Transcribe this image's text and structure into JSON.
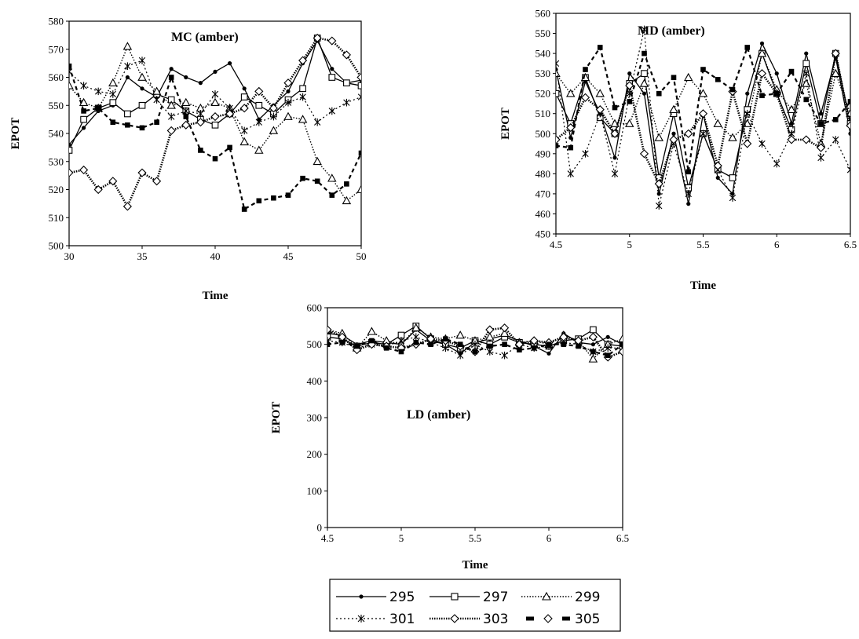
{
  "legend": {
    "items": [
      {
        "label": "295",
        "style": "solid",
        "marker": "dot"
      },
      {
        "label": "297",
        "style": "solid",
        "marker": "square-open"
      },
      {
        "label": "299",
        "style": "dotted",
        "marker": "triangle-open"
      },
      {
        "label": "301",
        "style": "dotted",
        "marker": "star"
      },
      {
        "label": "303",
        "style": "thick-dotted",
        "marker": "diamond-open"
      },
      {
        "label": "305",
        "style": "dashed",
        "marker": "diamond-open"
      }
    ]
  },
  "chart_data": [
    {
      "type": "line",
      "title": "MC (amber)",
      "xlabel": "Time",
      "ylabel": "EPOT",
      "xlim": [
        30,
        50
      ],
      "ylim": [
        500,
        580
      ],
      "xticks": [
        30,
        35,
        40,
        45,
        50
      ],
      "yticks": [
        500,
        510,
        520,
        530,
        540,
        550,
        560,
        570,
        580
      ],
      "series": [
        {
          "name": "295",
          "x": [
            30,
            31,
            32,
            33,
            34,
            35,
            36,
            37,
            38,
            39,
            40,
            41,
            42,
            43,
            44,
            45,
            46,
            47,
            48,
            49,
            50
          ],
          "y": [
            536,
            542,
            548,
            550,
            560,
            556,
            553,
            563,
            560,
            558,
            562,
            565,
            556,
            545,
            550,
            555,
            565,
            573,
            563,
            558,
            559
          ]
        },
        {
          "name": "297",
          "x": [
            30,
            31,
            32,
            33,
            34,
            35,
            36,
            37,
            38,
            39,
            40,
            41,
            42,
            43,
            44,
            45,
            46,
            47,
            48,
            49,
            50
          ],
          "y": [
            534,
            545,
            549,
            551,
            547,
            550,
            554,
            552,
            548,
            545,
            543,
            547,
            553,
            550,
            547,
            552,
            556,
            574,
            560,
            558,
            557
          ]
        },
        {
          "name": "299",
          "x": [
            30,
            31,
            32,
            33,
            34,
            35,
            36,
            37,
            38,
            39,
            40,
            41,
            42,
            43,
            44,
            45,
            46,
            47,
            48,
            49,
            50
          ],
          "y": [
            557,
            551,
            549,
            558,
            571,
            560,
            555,
            550,
            551,
            549,
            551,
            549,
            537,
            534,
            541,
            546,
            545,
            530,
            524,
            516,
            520
          ]
        },
        {
          "name": "301",
          "x": [
            30,
            31,
            32,
            33,
            34,
            35,
            36,
            37,
            38,
            39,
            40,
            41,
            42,
            43,
            44,
            45,
            46,
            47,
            48,
            49,
            50
          ],
          "y": [
            562,
            557,
            555,
            554,
            564,
            566,
            552,
            546,
            548,
            547,
            554,
            549,
            541,
            544,
            546,
            551,
            553,
            544,
            548,
            551,
            553
          ]
        },
        {
          "name": "303",
          "x": [
            30,
            31,
            32,
            33,
            34,
            35,
            36,
            37,
            38,
            39,
            40,
            41,
            42,
            43,
            44,
            45,
            46,
            47,
            48,
            49,
            50
          ],
          "y": [
            526,
            527,
            520,
            523,
            514,
            526,
            523,
            541,
            543,
            544,
            546,
            547,
            549,
            555,
            549,
            558,
            566,
            574,
            573,
            568,
            560
          ]
        },
        {
          "name": "305",
          "x": [
            30,
            31,
            32,
            33,
            34,
            35,
            36,
            37,
            38,
            39,
            40,
            41,
            42,
            43,
            44,
            45,
            46,
            47,
            48,
            49,
            50
          ],
          "y": [
            564,
            548,
            549,
            544,
            543,
            542,
            544,
            560,
            546,
            534,
            531,
            535,
            513,
            516,
            517,
            518,
            524,
            523,
            518,
            522,
            533
          ]
        }
      ]
    },
    {
      "type": "line",
      "title": "MD (amber)",
      "xlabel": "Time",
      "ylabel": "EPOT",
      "xlim": [
        4.5,
        6.5
      ],
      "ylim": [
        450,
        560
      ],
      "xticks": [
        4.5,
        5,
        5.5,
        6,
        6.5
      ],
      "yticks": [
        450,
        460,
        470,
        480,
        490,
        500,
        510,
        520,
        530,
        540,
        550,
        560
      ],
      "series": [
        {
          "name": "295",
          "x": [
            4.5,
            4.6,
            4.7,
            4.8,
            4.9,
            5.0,
            5.1,
            5.2,
            5.3,
            5.4,
            5.5,
            5.6,
            5.7,
            5.8,
            5.9,
            6.0,
            6.1,
            6.2,
            6.3,
            6.4,
            6.5
          ],
          "y": [
            532,
            498,
            526,
            510,
            488,
            530,
            520,
            470,
            500,
            465,
            510,
            478,
            470,
            520,
            545,
            530,
            505,
            540,
            510,
            538,
            500
          ]
        },
        {
          "name": "297",
          "x": [
            4.5,
            4.6,
            4.7,
            4.8,
            4.9,
            5.0,
            5.1,
            5.2,
            5.3,
            5.4,
            5.5,
            5.6,
            5.7,
            5.8,
            5.9,
            6.0,
            6.1,
            6.2,
            6.3,
            6.4,
            6.5
          ],
          "y": [
            520,
            505,
            528,
            508,
            500,
            525,
            530,
            478,
            510,
            473,
            500,
            482,
            478,
            512,
            540,
            520,
            502,
            535,
            505,
            540,
            505
          ]
        },
        {
          "name": "299",
          "x": [
            4.5,
            4.6,
            4.7,
            4.8,
            4.9,
            5.0,
            5.1,
            5.2,
            5.3,
            5.4,
            5.5,
            5.6,
            5.7,
            5.8,
            5.9,
            6.0,
            6.1,
            6.2,
            6.3,
            6.4,
            6.5
          ],
          "y": [
            530,
            520,
            528,
            520,
            505,
            505,
            525,
            498,
            512,
            528,
            520,
            505,
            498,
            505,
            540,
            522,
            512,
            525,
            495,
            530,
            510
          ]
        },
        {
          "name": "301",
          "x": [
            4.5,
            4.6,
            4.7,
            4.8,
            4.9,
            5.0,
            5.1,
            5.2,
            5.3,
            5.4,
            5.5,
            5.6,
            5.7,
            5.8,
            5.9,
            6.0,
            6.1,
            6.2,
            6.3,
            6.4,
            6.5
          ],
          "y": [
            535,
            480,
            490,
            510,
            480,
            520,
            552,
            464,
            495,
            470,
            500,
            482,
            468,
            510,
            495,
            485,
            500,
            530,
            488,
            497,
            482
          ]
        },
        {
          "name": "303",
          "x": [
            4.5,
            4.6,
            4.7,
            4.8,
            4.9,
            5.0,
            5.1,
            5.2,
            5.3,
            5.4,
            5.5,
            5.6,
            5.7,
            5.8,
            5.9,
            6.0,
            6.1,
            6.2,
            6.3,
            6.4,
            6.5
          ],
          "y": [
            497,
            503,
            518,
            512,
            500,
            524,
            490,
            475,
            497,
            500,
            510,
            484,
            521,
            495,
            530,
            520,
            497,
            497,
            493,
            540,
            504
          ]
        },
        {
          "name": "305",
          "x": [
            4.5,
            4.6,
            4.7,
            4.8,
            4.9,
            5.0,
            5.1,
            5.2,
            5.3,
            5.4,
            5.5,
            5.6,
            5.7,
            5.8,
            5.9,
            6.0,
            6.1,
            6.2,
            6.3,
            6.4,
            6.5
          ],
          "y": [
            494,
            493,
            532,
            543,
            513,
            516,
            540,
            520,
            528,
            481,
            532,
            527,
            522,
            543,
            519,
            520,
            531,
            517,
            505,
            507,
            516
          ]
        }
      ]
    },
    {
      "type": "line",
      "title": "LD (amber)",
      "xlabel": "Time",
      "ylabel": "EPOT",
      "xlim": [
        4.5,
        6.5
      ],
      "ylim": [
        0,
        600
      ],
      "xticks": [
        4.5,
        5,
        5.5,
        6,
        6.5
      ],
      "yticks": [
        0,
        100,
        200,
        300,
        400,
        500,
        600
      ],
      "series": [
        {
          "name": "295",
          "x": [
            4.5,
            4.6,
            4.7,
            4.8,
            4.9,
            5.0,
            5.1,
            5.2,
            5.3,
            5.4,
            5.5,
            5.6,
            5.7,
            5.8,
            5.9,
            6.0,
            6.1,
            6.2,
            6.3,
            6.4,
            6.5
          ],
          "y": [
            530,
            525,
            500,
            510,
            505,
            500,
            540,
            510,
            500,
            475,
            505,
            515,
            525,
            510,
            495,
            475,
            530,
            505,
            500,
            520,
            500
          ]
        },
        {
          "name": "297",
          "x": [
            4.5,
            4.6,
            4.7,
            4.8,
            4.9,
            5.0,
            5.1,
            5.2,
            5.3,
            5.4,
            5.5,
            5.6,
            5.7,
            5.8,
            5.9,
            6.0,
            6.1,
            6.2,
            6.3,
            6.4,
            6.5
          ],
          "y": [
            520,
            515,
            495,
            505,
            500,
            525,
            550,
            515,
            500,
            490,
            510,
            500,
            520,
            505,
            500,
            495,
            510,
            515,
            540,
            500,
            495
          ]
        },
        {
          "name": "299",
          "x": [
            4.5,
            4.6,
            4.7,
            4.8,
            4.9,
            5.0,
            5.1,
            5.2,
            5.3,
            5.4,
            5.5,
            5.6,
            5.7,
            5.8,
            5.9,
            6.0,
            6.1,
            6.2,
            6.3,
            6.4,
            6.5
          ],
          "y": [
            540,
            530,
            490,
            535,
            510,
            500,
            545,
            520,
            515,
            525,
            510,
            520,
            530,
            505,
            510,
            500,
            525,
            510,
            460,
            500,
            515
          ]
        },
        {
          "name": "301",
          "x": [
            4.5,
            4.6,
            4.7,
            4.8,
            4.9,
            5.0,
            5.1,
            5.2,
            5.3,
            5.4,
            5.5,
            5.6,
            5.7,
            5.8,
            5.9,
            6.0,
            6.1,
            6.2,
            6.3,
            6.4,
            6.5
          ],
          "y": [
            510,
            505,
            490,
            500,
            495,
            510,
            520,
            505,
            490,
            470,
            500,
            480,
            470,
            500,
            490,
            495,
            505,
            500,
            480,
            490,
            490
          ]
        },
        {
          "name": "303",
          "x": [
            4.5,
            4.6,
            4.7,
            4.8,
            4.9,
            5.0,
            5.1,
            5.2,
            5.3,
            5.4,
            5.5,
            5.6,
            5.7,
            5.8,
            5.9,
            6.0,
            6.1,
            6.2,
            6.3,
            6.4,
            6.5
          ],
          "y": [
            540,
            520,
            485,
            500,
            495,
            490,
            500,
            515,
            510,
            495,
            480,
            540,
            545,
            500,
            510,
            505,
            520,
            510,
            520,
            465,
            480
          ]
        },
        {
          "name": "305",
          "x": [
            4.5,
            4.6,
            4.7,
            4.8,
            4.9,
            5.0,
            5.1,
            5.2,
            5.3,
            5.4,
            5.5,
            5.6,
            5.7,
            5.8,
            5.9,
            6.0,
            6.1,
            6.2,
            6.3,
            6.4,
            6.5
          ],
          "y": [
            500,
            505,
            495,
            510,
            490,
            480,
            505,
            500,
            515,
            500,
            480,
            495,
            500,
            485,
            490,
            500,
            500,
            495,
            480,
            470,
            500
          ]
        }
      ]
    }
  ]
}
